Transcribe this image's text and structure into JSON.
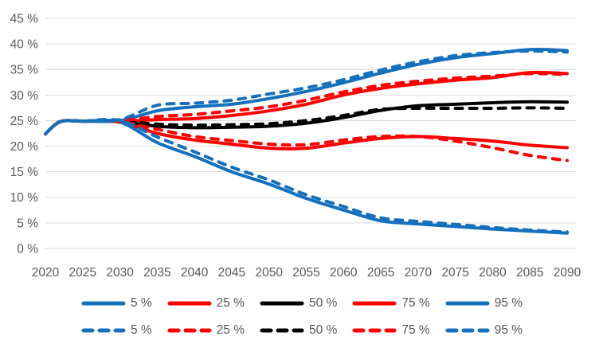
{
  "chart_data": {
    "type": "line",
    "title": "",
    "xlabel": "",
    "ylabel": "",
    "x_range": [
      2020,
      2090
    ],
    "y_range": [
      0,
      45
    ],
    "grid": true,
    "x_tick_labels": [
      "2020",
      "2025",
      "2030",
      "2035",
      "2040",
      "2045",
      "2050",
      "2055",
      "2060",
      "2065",
      "2070",
      "2075",
      "2080",
      "2085",
      "2090"
    ],
    "y_tick_labels": [
      "45 %",
      "40 %",
      "35 %",
      "30 %",
      "25 %",
      "20 %",
      "15 %",
      "10 %",
      "5 %",
      "0 %"
    ],
    "y_tick_values": [
      45,
      40,
      35,
      30,
      25,
      20,
      15,
      10,
      5,
      0
    ],
    "x": [
      2020,
      2022,
      2025,
      2030,
      2035,
      2040,
      2045,
      2050,
      2055,
      2060,
      2065,
      2070,
      2075,
      2080,
      2085,
      2090
    ],
    "series": [
      {
        "name": "50 %",
        "style": "solid",
        "color": "#000000",
        "values": [
          22.4,
          24.8,
          24.9,
          24.8,
          23.9,
          23.6,
          23.7,
          23.9,
          24.5,
          25.6,
          27.0,
          27.9,
          28.2,
          28.5,
          28.7,
          28.6
        ]
      },
      {
        "name": "25 %",
        "style": "solid",
        "color": "#FF0000",
        "values": [
          22.4,
          24.8,
          24.9,
          24.7,
          22.5,
          21.2,
          20.4,
          19.6,
          19.6,
          20.6,
          21.5,
          21.9,
          21.5,
          21.0,
          20.2,
          19.7
        ]
      },
      {
        "name": "75 %",
        "style": "solid",
        "color": "#FF0000",
        "values": [
          22.4,
          24.8,
          24.9,
          24.9,
          25.2,
          25.4,
          26.0,
          26.9,
          28.2,
          30.0,
          31.3,
          32.2,
          32.9,
          33.4,
          34.4,
          34.2
        ]
      },
      {
        "name": "5 %",
        "style": "solid",
        "color": "#1470BD",
        "values": [
          22.4,
          24.8,
          24.9,
          24.7,
          20.7,
          18.0,
          15.0,
          12.6,
          9.8,
          7.5,
          5.4,
          4.8,
          4.3,
          3.8,
          3.4,
          3.0
        ]
      },
      {
        "name": "95 %",
        "style": "solid",
        "color": "#1470BD",
        "values": [
          22.4,
          24.8,
          24.9,
          25.0,
          26.9,
          27.7,
          28.2,
          29.3,
          30.7,
          32.4,
          34.3,
          36.0,
          37.3,
          38.1,
          38.9,
          38.7
        ]
      },
      {
        "name": "50 %",
        "style": "dashed",
        "color": "#000000",
        "values": [
          22.4,
          24.8,
          24.9,
          24.9,
          24.3,
          24.1,
          24.2,
          24.4,
          25.0,
          26.0,
          27.2,
          27.4,
          27.4,
          27.4,
          27.5,
          27.4
        ]
      },
      {
        "name": "25 %",
        "style": "dashed",
        "color": "#FF0000",
        "values": [
          22.4,
          24.8,
          24.9,
          24.8,
          23.3,
          21.9,
          21.1,
          20.4,
          20.3,
          21.2,
          21.9,
          21.9,
          21.0,
          19.7,
          18.2,
          17.2
        ]
      },
      {
        "name": "75 %",
        "style": "dashed",
        "color": "#FF0000",
        "values": [
          22.4,
          24.8,
          24.9,
          25.0,
          25.8,
          26.2,
          26.9,
          27.7,
          29.0,
          30.6,
          31.9,
          32.7,
          33.3,
          33.7,
          34.2,
          34.0
        ]
      },
      {
        "name": "5 %",
        "style": "dashed",
        "color": "#1470BD",
        "values": [
          22.4,
          24.8,
          24.9,
          25.0,
          21.8,
          18.9,
          15.9,
          13.4,
          10.5,
          8.2,
          6.0,
          5.3,
          4.7,
          4.1,
          3.6,
          3.2
        ]
      },
      {
        "name": "95 %",
        "style": "dashed",
        "color": "#1470BD",
        "values": [
          22.4,
          24.8,
          24.9,
          25.2,
          28.0,
          28.4,
          29.0,
          30.2,
          31.4,
          33.0,
          34.9,
          36.5,
          37.7,
          38.3,
          38.6,
          38.4
        ]
      }
    ],
    "legend_position": "bottom",
    "legend_rows": [
      {
        "style": "solid",
        "items": [
          {
            "label": "5 %",
            "color": "#1470BD"
          },
          {
            "label": "25 %",
            "color": "#FF0000"
          },
          {
            "label": "50 %",
            "color": "#000000"
          },
          {
            "label": "75 %",
            "color": "#FF0000"
          },
          {
            "label": "95 %",
            "color": "#1470BD"
          }
        ]
      },
      {
        "style": "dashed",
        "items": [
          {
            "label": "5 %",
            "color": "#1470BD"
          },
          {
            "label": "25 %",
            "color": "#FF0000"
          },
          {
            "label": "50 %",
            "color": "#000000"
          },
          {
            "label": "75 %",
            "color": "#FF0000"
          },
          {
            "label": "95 %",
            "color": "#1470BD"
          }
        ]
      }
    ],
    "colors": {
      "blue": "#1470BD",
      "red": "#FF0000",
      "black": "#000000",
      "gridline": "#D9D9D9",
      "tick_text": "#595959",
      "background": "#FFFFFF"
    }
  }
}
